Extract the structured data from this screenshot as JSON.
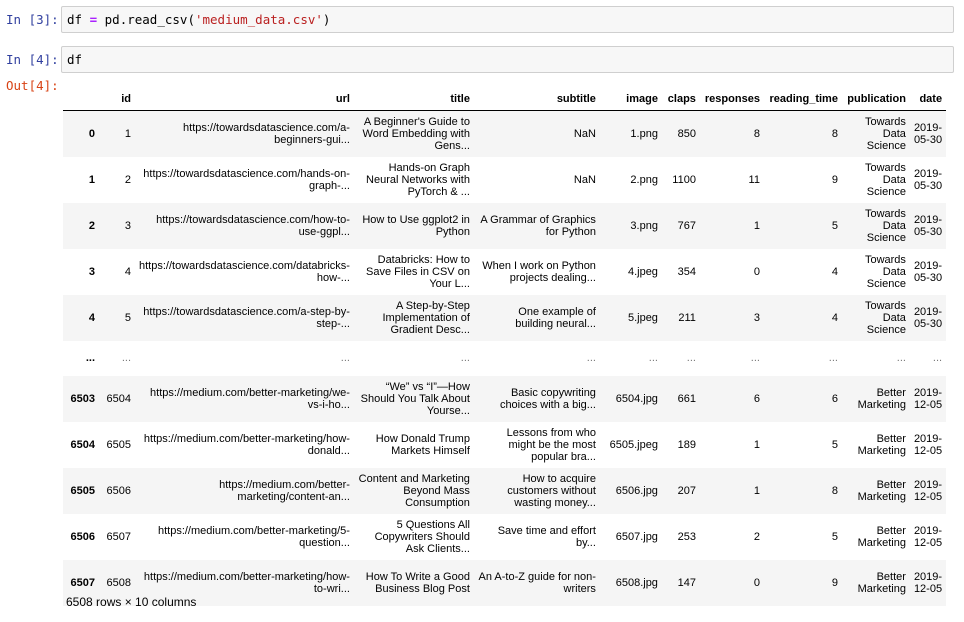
{
  "cells": [
    {
      "prompt": "In [3]:",
      "code": {
        "var": "df",
        "op": "=",
        "call": "pd.read_csv(",
        "arg": "'medium_data.csv'",
        "close": ")"
      }
    },
    {
      "prompt": "In [4]:",
      "code": {
        "text": "df"
      }
    },
    {
      "prompt": "Out[4]:"
    }
  ],
  "table": {
    "columns": [
      "",
      "id",
      "url",
      "title",
      "subtitle",
      "image",
      "claps",
      "responses",
      "reading_time",
      "publication",
      "date"
    ],
    "rows": [
      [
        "0",
        "1",
        "https://towardsdatascience.com/a-beginners-gui...",
        "A Beginner's Guide to Word Embedding with Gens...",
        "NaN",
        "1.png",
        "850",
        "8",
        "8",
        "Towards Data Science",
        "2019-05-30"
      ],
      [
        "1",
        "2",
        "https://towardsdatascience.com/hands-on-graph-...",
        "Hands-on Graph Neural Networks with PyTorch & ...",
        "NaN",
        "2.png",
        "1100",
        "11",
        "9",
        "Towards Data Science",
        "2019-05-30"
      ],
      [
        "2",
        "3",
        "https://towardsdatascience.com/how-to-use-ggpl...",
        "How to Use ggplot2 in Python",
        "A Grammar of Graphics for Python",
        "3.png",
        "767",
        "1",
        "5",
        "Towards Data Science",
        "2019-05-30"
      ],
      [
        "3",
        "4",
        "https://towardsdatascience.com/databricks-how-...",
        "Databricks: How to Save Files in CSV on Your L...",
        "When I work on Python projects dealing...",
        "4.jpeg",
        "354",
        "0",
        "4",
        "Towards Data Science",
        "2019-05-30"
      ],
      [
        "4",
        "5",
        "https://towardsdatascience.com/a-step-by-step-...",
        "A Step-by-Step Implementation of Gradient Desc...",
        "One example of building neural...",
        "5.jpeg",
        "211",
        "3",
        "4",
        "Towards Data Science",
        "2019-05-30"
      ],
      [
        "...",
        "...",
        "...",
        "...",
        "...",
        "...",
        "...",
        "...",
        "...",
        "...",
        "..."
      ],
      [
        "6503",
        "6504",
        "https://medium.com/better-marketing/we-vs-i-ho...",
        "“We” vs “I”—How Should You Talk About Yourse...",
        "Basic copywriting choices with a big...",
        "6504.jpg",
        "661",
        "6",
        "6",
        "Better Marketing",
        "2019-12-05"
      ],
      [
        "6504",
        "6505",
        "https://medium.com/better-marketing/how-donald...",
        "How Donald Trump Markets Himself",
        "Lessons from who might be the most popular bra...",
        "6505.jpeg",
        "189",
        "1",
        "5",
        "Better Marketing",
        "2019-12-05"
      ],
      [
        "6505",
        "6506",
        "https://medium.com/better-marketing/content-an...",
        "Content and Marketing Beyond Mass Consumption",
        "How to acquire customers without wasting money...",
        "6506.jpg",
        "207",
        "1",
        "8",
        "Better Marketing",
        "2019-12-05"
      ],
      [
        "6506",
        "6507",
        "https://medium.com/better-marketing/5-question...",
        "5 Questions All Copywriters Should Ask Clients...",
        "Save time and effort by...",
        "6507.jpg",
        "253",
        "2",
        "5",
        "Better Marketing",
        "2019-12-05"
      ],
      [
        "6507",
        "6508",
        "https://medium.com/better-marketing/how-to-wri...",
        "How To Write a Good Business Blog Post",
        "An A-to-Z guide for non-writers",
        "6508.jpg",
        "147",
        "0",
        "9",
        "Better Marketing",
        "2019-12-05"
      ]
    ]
  },
  "footer": "6508 rows × 10 columns"
}
